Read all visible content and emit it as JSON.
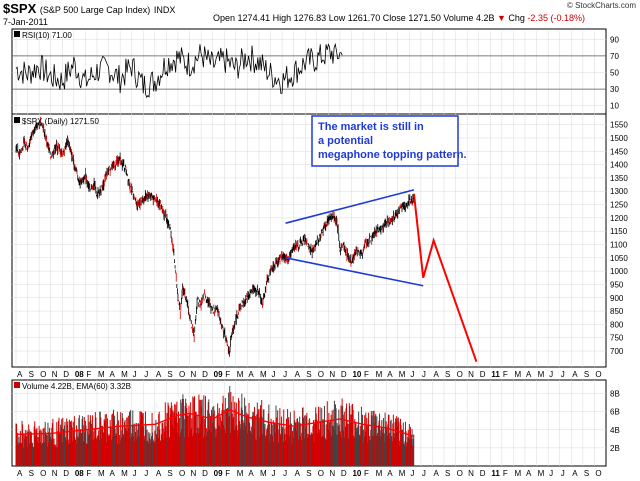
{
  "header": {
    "symbol": "$SPX",
    "name": "(S&P 500 Large Cap Index)",
    "exchange": "INDX",
    "date": "7-Jan-2011",
    "open_label": "Open",
    "open": "1274.41",
    "high_label": "High",
    "high": "1276.83",
    "low_label": "Low",
    "low": "1261.70",
    "close_label": "Close",
    "close": "1271.50",
    "volume_label": "Volume",
    "volume": "4.2B",
    "chg_label": "Chg",
    "chg": "-2.35 (-0.18%)",
    "down_icon": "down-triangle-icon",
    "copyright": "© StockCharts.com"
  },
  "colors": {
    "rsi_line": "#000000",
    "price_bar": "#000000",
    "price_bar_down": "#cc0000",
    "trendline": "#1f3bd6",
    "projection": "#ff0000",
    "volume_bar": "#d40000",
    "volume_bar_dark": "#444444",
    "ema": "#ff0000",
    "annotation_text": "#1f3bd6",
    "grid": "#d8d8d8"
  },
  "chart_data": [
    {
      "type": "line",
      "name": "rsi",
      "legend": "RSI(10) 71.00",
      "y_ticks": [
        10,
        30,
        50,
        70,
        90
      ],
      "ylim": [
        0,
        100
      ],
      "reference_lines": [
        30,
        70
      ],
      "x_start_month": 8,
      "x_months": 30,
      "last_value": 71.0,
      "swing_points": [
        [
          0,
          55
        ],
        [
          1,
          48
        ],
        [
          2,
          58
        ],
        [
          3,
          45
        ],
        [
          4,
          40
        ],
        [
          5,
          60
        ],
        [
          6,
          38
        ],
        [
          7,
          52
        ],
        [
          8,
          55
        ],
        [
          9,
          42
        ],
        [
          10,
          58
        ],
        [
          11,
          34
        ],
        [
          12,
          40
        ],
        [
          13,
          62
        ],
        [
          14,
          68
        ],
        [
          15,
          60
        ],
        [
          16,
          72
        ],
        [
          17,
          58
        ],
        [
          18,
          65
        ],
        [
          19,
          55
        ],
        [
          20,
          70
        ],
        [
          21,
          62
        ],
        [
          22,
          48
        ],
        [
          23,
          40
        ],
        [
          24,
          50
        ],
        [
          25,
          62
        ],
        [
          26,
          66
        ],
        [
          27,
          74
        ],
        [
          28,
          72
        ],
        [
          28.2,
          71
        ]
      ]
    },
    {
      "type": "line",
      "name": "price",
      "legend": "$SPX (Daily) 1271.50",
      "y_ticks": [
        700,
        750,
        800,
        850,
        900,
        950,
        1000,
        1050,
        1100,
        1150,
        1200,
        1250,
        1300,
        1350,
        1400,
        1450,
        1500,
        1550
      ],
      "ylim": [
        640,
        1590
      ],
      "x_labels": [
        "A",
        "S",
        "O",
        "N",
        "D",
        "08",
        "F",
        "M",
        "A",
        "M",
        "J",
        "J",
        "A",
        "S",
        "O",
        "N",
        "D",
        "09",
        "F",
        "M",
        "A",
        "M",
        "J",
        "J",
        "A",
        "S",
        "O",
        "N",
        "D",
        "10",
        "F",
        "M",
        "A",
        "M",
        "J",
        "J",
        "A",
        "S",
        "O",
        "N",
        "D",
        "11",
        "F",
        "M",
        "A",
        "M",
        "J",
        "J",
        "A",
        "S",
        "O"
      ],
      "x_bold": [
        "08",
        "09",
        "10",
        "11"
      ],
      "x_start": "2007-08",
      "price_path": [
        [
          0,
          1470
        ],
        [
          0.3,
          1440
        ],
        [
          0.7,
          1480
        ],
        [
          1,
          1460
        ],
        [
          1.5,
          1530
        ],
        [
          2.2,
          1560
        ],
        [
          2.6,
          1500
        ],
        [
          3,
          1430
        ],
        [
          3.5,
          1470
        ],
        [
          4,
          1440
        ],
        [
          4.5,
          1490
        ],
        [
          5,
          1410
        ],
        [
          5.5,
          1330
        ],
        [
          6,
          1360
        ],
        [
          6.4,
          1300
        ],
        [
          6.8,
          1330
        ],
        [
          7,
          1280
        ],
        [
          7.5,
          1320
        ],
        [
          8,
          1380
        ],
        [
          8.5,
          1400
        ],
        [
          9,
          1420
        ],
        [
          9.5,
          1380
        ],
        [
          10,
          1300
        ],
        [
          10.5,
          1250
        ],
        [
          11,
          1270
        ],
        [
          11.5,
          1290
        ],
        [
          12,
          1270
        ],
        [
          12.5,
          1250
        ],
        [
          13,
          1200
        ],
        [
          13.4,
          1150
        ],
        [
          13.8,
          1000
        ],
        [
          14,
          900
        ],
        [
          14.2,
          850
        ],
        [
          14.4,
          940
        ],
        [
          14.8,
          880
        ],
        [
          15,
          830
        ],
        [
          15.4,
          760
        ],
        [
          15.7,
          900
        ],
        [
          16,
          870
        ],
        [
          16.3,
          910
        ],
        [
          16.7,
          880
        ],
        [
          17,
          850
        ],
        [
          17.4,
          860
        ],
        [
          17.8,
          800
        ],
        [
          18.2,
          740
        ],
        [
          18.4,
          690
        ],
        [
          18.7,
          770
        ],
        [
          19,
          820
        ],
        [
          19.5,
          870
        ],
        [
          20,
          900
        ],
        [
          20.5,
          930
        ],
        [
          21,
          920
        ],
        [
          21.3,
          880
        ],
        [
          21.7,
          960
        ],
        [
          22,
          1000
        ],
        [
          22.5,
          1030
        ],
        [
          23,
          1060
        ],
        [
          23.5,
          1040
        ],
        [
          24,
          1090
        ],
        [
          24.5,
          1100
        ],
        [
          25,
          1120
        ],
        [
          25.3,
          1090
        ],
        [
          25.6,
          1070
        ],
        [
          26,
          1110
        ],
        [
          26.5,
          1150
        ],
        [
          27,
          1190
        ],
        [
          27.4,
          1210
        ],
        [
          27.8,
          1170
        ],
        [
          28,
          1080
        ],
        [
          28.3,
          1100
        ],
        [
          28.6,
          1060
        ],
        [
          29,
          1040
        ],
        [
          29.4,
          1080
        ],
        [
          29.8,
          1060
        ],
        [
          30.2,
          1100
        ],
        [
          30.6,
          1120
        ],
        [
          31,
          1140
        ],
        [
          31.5,
          1160
        ],
        [
          32,
          1180
        ],
        [
          32.5,
          1190
        ],
        [
          33,
          1220
        ],
        [
          33.5,
          1240
        ],
        [
          34,
          1260
        ],
        [
          34.4,
          1271.5
        ]
      ],
      "trendlines": [
        {
          "from": [
            23.3,
            1180
          ],
          "to": [
            34.4,
            1305
          ]
        },
        {
          "from": [
            23.3,
            1050
          ],
          "to": [
            35.2,
            945
          ]
        }
      ],
      "projection": [
        [
          34.4,
          1290
        ],
        [
          35.2,
          975
        ],
        [
          36.1,
          1115
        ],
        [
          39.8,
          660
        ]
      ],
      "annotation": "The market is still in a potential megaphone topping pattern."
    },
    {
      "type": "bar",
      "name": "volume",
      "legend": "Volume 4.22B, EMA(60) 3.32B",
      "y_ticks": [
        "2B",
        "4B",
        "6B",
        "8B"
      ],
      "ylim": [
        0,
        9.5
      ],
      "ema_path": [
        [
          0,
          3.5
        ],
        [
          3,
          3.6
        ],
        [
          6,
          4.0
        ],
        [
          9,
          4.4
        ],
        [
          12,
          4.6
        ],
        [
          14,
          5.6
        ],
        [
          15,
          5.8
        ],
        [
          17,
          5.2
        ],
        [
          18.5,
          6.2
        ],
        [
          20,
          5.4
        ],
        [
          22,
          4.8
        ],
        [
          24,
          4.4
        ],
        [
          26,
          4.8
        ],
        [
          28,
          5.2
        ],
        [
          30,
          4.6
        ],
        [
          32,
          4.2
        ],
        [
          34.4,
          3.3
        ]
      ]
    }
  ]
}
